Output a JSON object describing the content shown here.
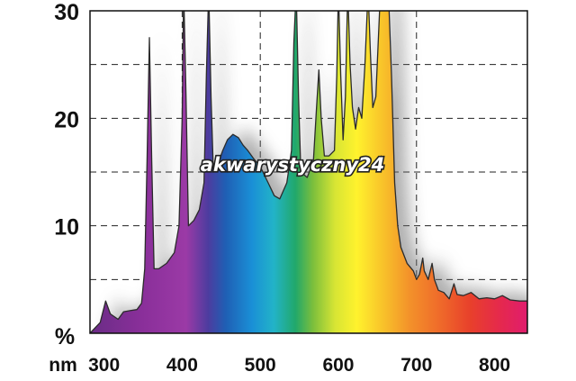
{
  "chart_data": {
    "type": "area",
    "title": "",
    "xlabel": "nm",
    "ylabel": "%",
    "xlim": [
      282,
      842
    ],
    "ylim": [
      0,
      30
    ],
    "x_ticks": [
      "300",
      "400",
      "500",
      "600",
      "700",
      "800"
    ],
    "y_ticks": [
      "10",
      "20",
      "30"
    ],
    "grid": "dashed",
    "watermark": "akwarystyczny24",
    "series": [
      {
        "points": [
          [
            282,
            0
          ],
          [
            295,
            1
          ],
          [
            302,
            3
          ],
          [
            308,
            1.8
          ],
          [
            318,
            1.3
          ],
          [
            325,
            2
          ],
          [
            333,
            2.1
          ],
          [
            342,
            2.2
          ],
          [
            348,
            2.8
          ],
          [
            352,
            6
          ],
          [
            355,
            16
          ],
          [
            358,
            27.5
          ],
          [
            361,
            16
          ],
          [
            364,
            6
          ],
          [
            370,
            6
          ],
          [
            380,
            6.5
          ],
          [
            390,
            7.5
          ],
          [
            396,
            10
          ],
          [
            400,
            20
          ],
          [
            402,
            32
          ],
          [
            405,
            22
          ],
          [
            408,
            10
          ],
          [
            415,
            10.5
          ],
          [
            422,
            11.5
          ],
          [
            428,
            14
          ],
          [
            431,
            24
          ],
          [
            434,
            32
          ],
          [
            437,
            22
          ],
          [
            440,
            15
          ],
          [
            447,
            16
          ],
          [
            452,
            17
          ],
          [
            458,
            18
          ],
          [
            465,
            18.5
          ],
          [
            472,
            18.2
          ],
          [
            478,
            17.5
          ],
          [
            484,
            17
          ],
          [
            492,
            16.2
          ],
          [
            500,
            15.5
          ],
          [
            510,
            14
          ],
          [
            518,
            12.8
          ],
          [
            525,
            12.5
          ],
          [
            534,
            14
          ],
          [
            540,
            17
          ],
          [
            543,
            27
          ],
          [
            546,
            32
          ],
          [
            549,
            22
          ],
          [
            552,
            15
          ],
          [
            560,
            14.5
          ],
          [
            568,
            16
          ],
          [
            572,
            21
          ],
          [
            575,
            24.5
          ],
          [
            578,
            20
          ],
          [
            582,
            16.5
          ],
          [
            588,
            16.5
          ],
          [
            595,
            17
          ],
          [
            598,
            24
          ],
          [
            600,
            32
          ],
          [
            603,
            24
          ],
          [
            606,
            18
          ],
          [
            609,
            22
          ],
          [
            612,
            32
          ],
          [
            615,
            25
          ],
          [
            618,
            21
          ],
          [
            622,
            19
          ],
          [
            626,
            21
          ],
          [
            630,
            20
          ],
          [
            634,
            25
          ],
          [
            638,
            32
          ],
          [
            641,
            26
          ],
          [
            644,
            21
          ],
          [
            648,
            22
          ],
          [
            654,
            32
          ],
          [
            664,
            32
          ],
          [
            668,
            24
          ],
          [
            672,
            14
          ],
          [
            676,
            10
          ],
          [
            680,
            8
          ],
          [
            688,
            6.5
          ],
          [
            696,
            5.8
          ],
          [
            700,
            5
          ],
          [
            704,
            5.5
          ],
          [
            708,
            7
          ],
          [
            710,
            5.8
          ],
          [
            715,
            5
          ],
          [
            720,
            6.5
          ],
          [
            723,
            5
          ],
          [
            728,
            4
          ],
          [
            735,
            3.8
          ],
          [
            742,
            3.2
          ],
          [
            748,
            4.6
          ],
          [
            752,
            3.6
          ],
          [
            760,
            3.5
          ],
          [
            770,
            3.8
          ],
          [
            780,
            3.2
          ],
          [
            790,
            3.3
          ],
          [
            800,
            3.2
          ],
          [
            810,
            3.5
          ],
          [
            820,
            3.1
          ],
          [
            832,
            3
          ],
          [
            842,
            3
          ],
          [
            842,
            0
          ]
        ]
      }
    ]
  }
}
